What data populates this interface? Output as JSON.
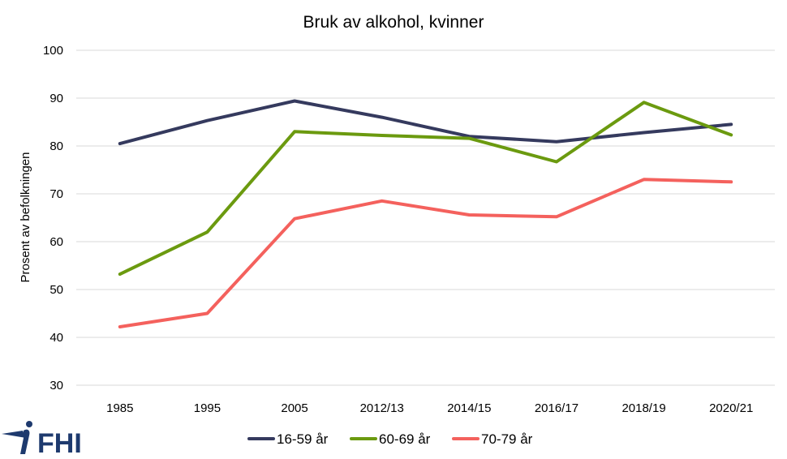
{
  "chart_data": {
    "type": "line",
    "title": "Bruk av alkohol, kvinner",
    "ylabel": "Prosent av befolkningen",
    "xlabel": "",
    "categories": [
      "1985",
      "1995",
      "2005",
      "2012/13",
      "2014/15",
      "2016/17",
      "2018/19",
      "2020/21"
    ],
    "ylim": [
      30,
      100
    ],
    "yticks": [
      30,
      40,
      50,
      60,
      70,
      80,
      90,
      100
    ],
    "grid": true,
    "legend_position": "bottom",
    "series": [
      {
        "name": "16-59 år",
        "color": "#353a5e",
        "values": [
          80.5,
          85.3,
          89.4,
          86.0,
          82.0,
          80.9,
          82.8,
          84.5
        ]
      },
      {
        "name": "60-69 år",
        "color": "#6b9a0f",
        "values": [
          53.2,
          62.0,
          83.0,
          82.2,
          81.6,
          76.7,
          89.1,
          82.3
        ]
      },
      {
        "name": "70-79 år",
        "color": "#f4615d",
        "values": [
          42.2,
          45.0,
          64.8,
          68.5,
          65.6,
          65.2,
          73.0,
          72.5
        ]
      }
    ]
  },
  "logo": {
    "text": "FHI",
    "icon": "fhi-figure-icon",
    "color": "#1e3a6e"
  }
}
